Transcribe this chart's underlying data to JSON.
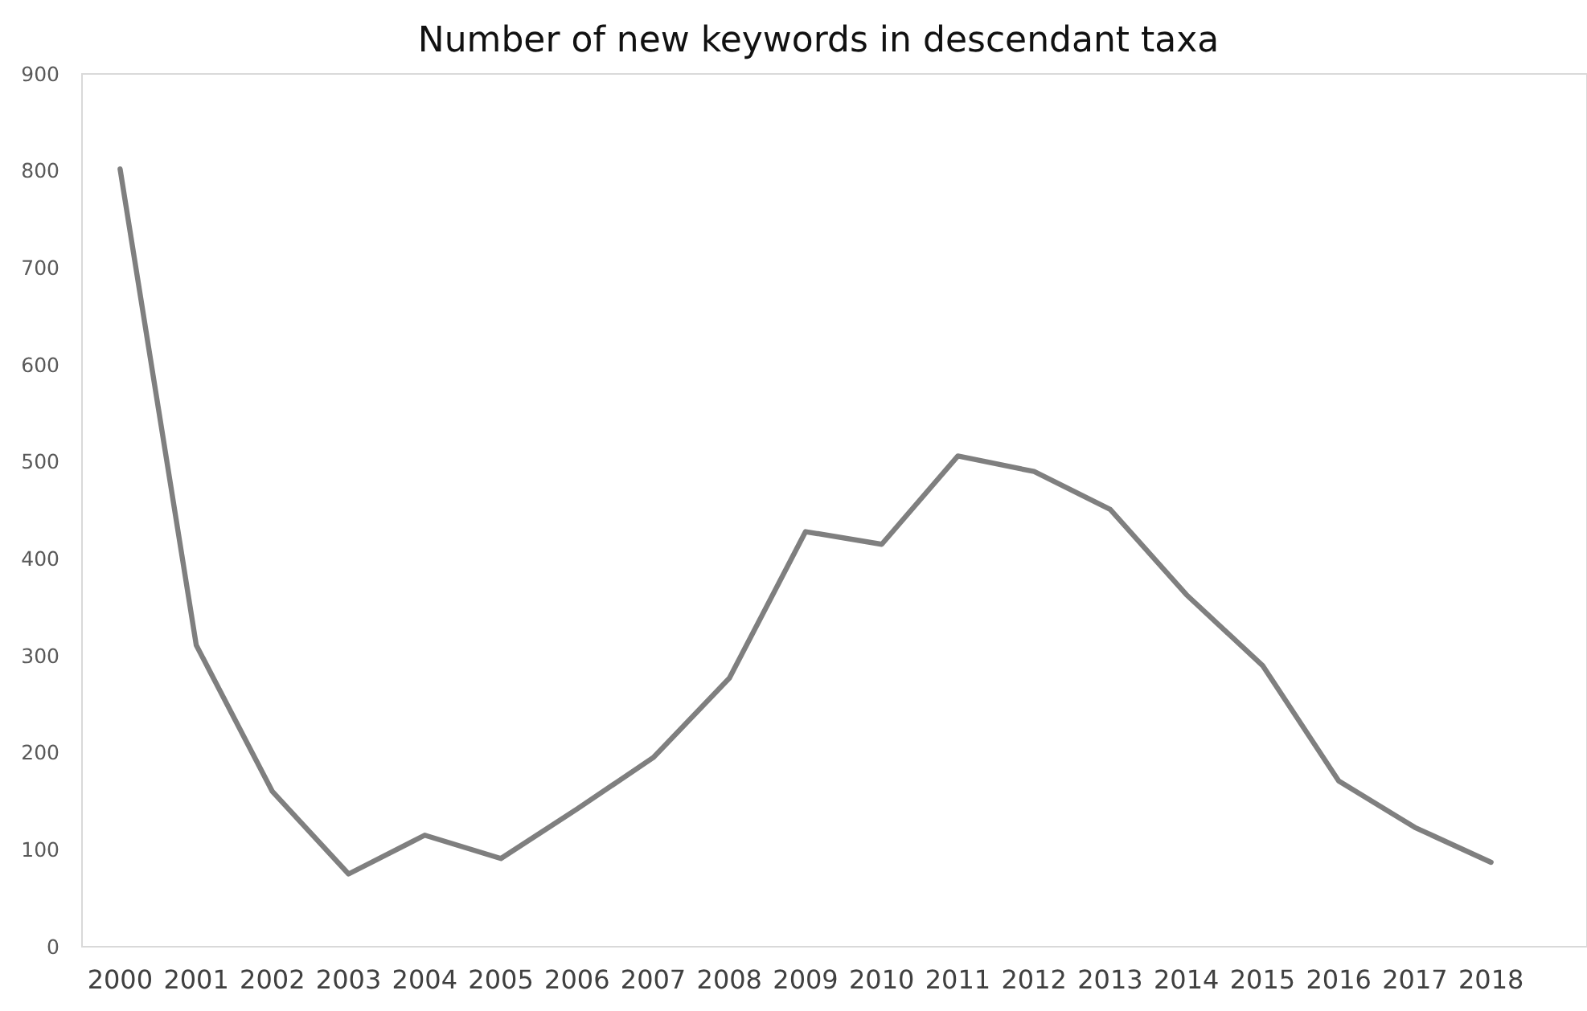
{
  "chart_data": {
    "type": "line",
    "title": "Number of new keywords in descendant taxa",
    "categories": [
      "2000",
      "2001",
      "2002",
      "2003",
      "2004",
      "2005",
      "2006",
      "2007",
      "2008",
      "2009",
      "2010",
      "2011",
      "2012",
      "2013",
      "2014",
      "2015",
      "2016",
      "2017",
      "2018"
    ],
    "series": [
      {
        "color": "#7f7f7f",
        "values": [
          802,
          311,
          160,
          75,
          115,
          91,
          142,
          195,
          277,
          428,
          415,
          506,
          490,
          451,
          363,
          290,
          171,
          123,
          87
        ]
      }
    ],
    "ylim": [
      0,
      900
    ],
    "yticks": [
      0,
      100,
      200,
      300,
      400,
      500,
      600,
      700,
      800,
      900
    ],
    "grid": false,
    "marker": "none",
    "line_style": "solid"
  }
}
